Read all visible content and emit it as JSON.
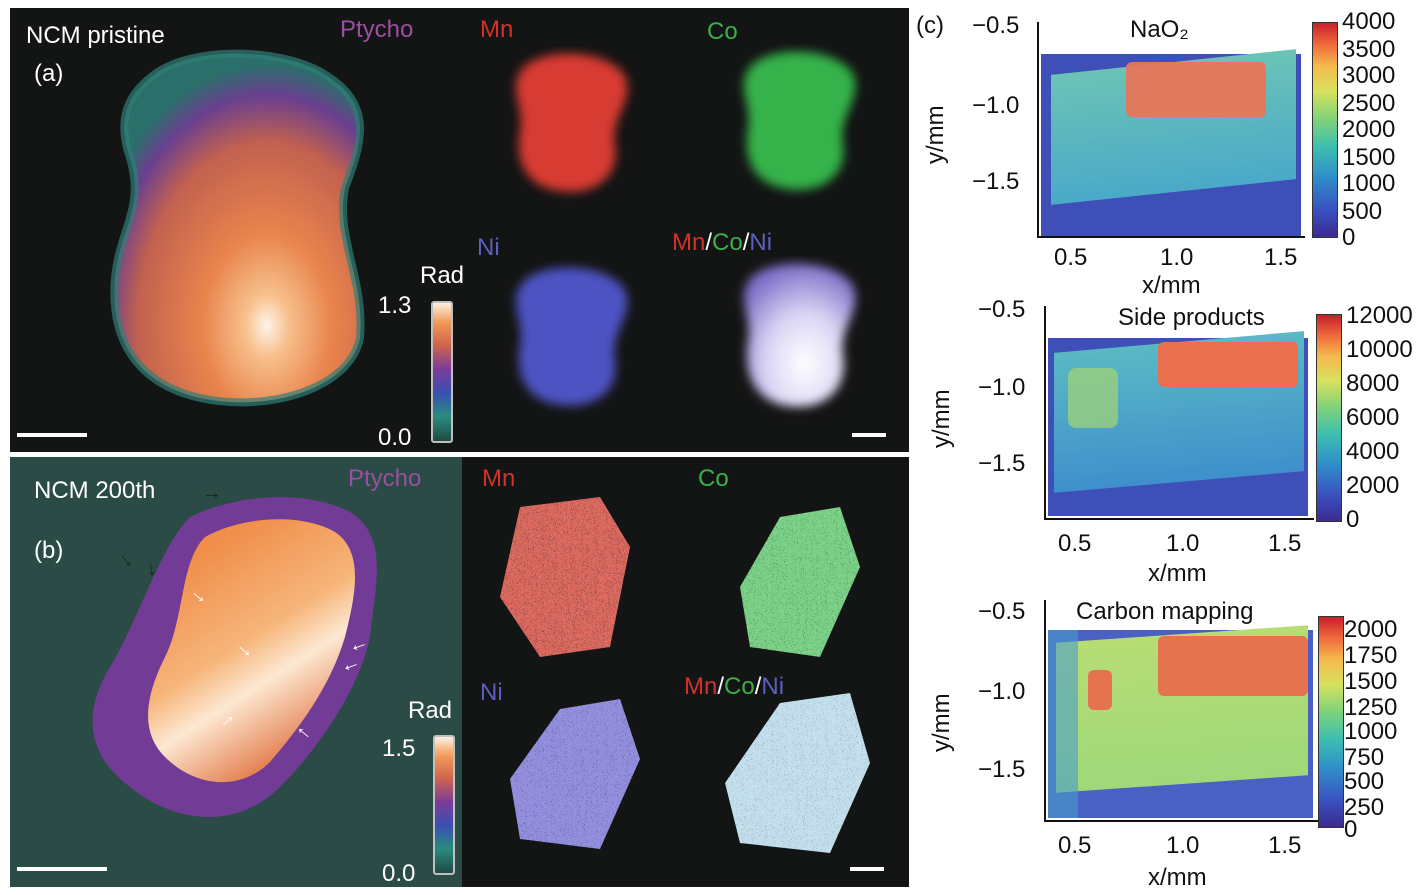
{
  "panel_a": {
    "title": "NCM pristine",
    "label": "(a)",
    "ptycho": "Ptycho",
    "mn": "Mn",
    "co": "Co",
    "ni": "Ni",
    "combo": {
      "mn": "Mn",
      "sep1": "/",
      "co": "Co",
      "sep2": "/",
      "ni": "Ni"
    },
    "colorbar": {
      "label": "Rad",
      "max": "1.3",
      "min": "0.0"
    }
  },
  "panel_b": {
    "title": "NCM 200th",
    "label": "(b)",
    "ptycho": "Ptycho",
    "mn": "Mn",
    "co": "Co",
    "ni": "Ni",
    "combo": {
      "mn": "Mn",
      "sep1": "/",
      "co": "Co",
      "sep2": "/",
      "ni": "Ni"
    },
    "colorbar": {
      "label": "Rad",
      "max": "1.5",
      "min": "0.0"
    }
  },
  "panel_c": {
    "label": "(c)",
    "plots": [
      {
        "title": "NaO₂",
        "ylabel": "y/mm",
        "xlabel": "x/mm",
        "yticks": [
          "−0.5",
          "−1.0",
          "−1.5"
        ],
        "xticks": [
          "0.5",
          "1.0",
          "1.5"
        ],
        "cbticks": [
          "4000",
          "3500",
          "3000",
          "2500",
          "2000",
          "1500",
          "1000",
          "500",
          "0"
        ]
      },
      {
        "title": "Side products",
        "ylabel": "y/mm",
        "xlabel": "x/mm",
        "yticks": [
          "−0.5",
          "−1.0",
          "−1.5"
        ],
        "xticks": [
          "0.5",
          "1.0",
          "1.5"
        ],
        "cbticks": [
          "12000",
          "10000",
          "8000",
          "6000",
          "4000",
          "2000",
          "0"
        ]
      },
      {
        "title": "Carbon mapping",
        "ylabel": "y/mm",
        "xlabel": "x/mm",
        "yticks": [
          "−0.5",
          "−1.0",
          "−1.5"
        ],
        "xticks": [
          "0.5",
          "1.0",
          "1.5"
        ],
        "cbticks": [
          "2000",
          "1750",
          "1500",
          "1250",
          "1000",
          "750",
          "500",
          "250",
          "0"
        ]
      }
    ]
  },
  "colors": {
    "panel_bg": "#131414",
    "mn": "#d2322b",
    "co": "#3fae49",
    "ni": "#5b5fbf",
    "ptycho_label": "#9b4fa0"
  }
}
